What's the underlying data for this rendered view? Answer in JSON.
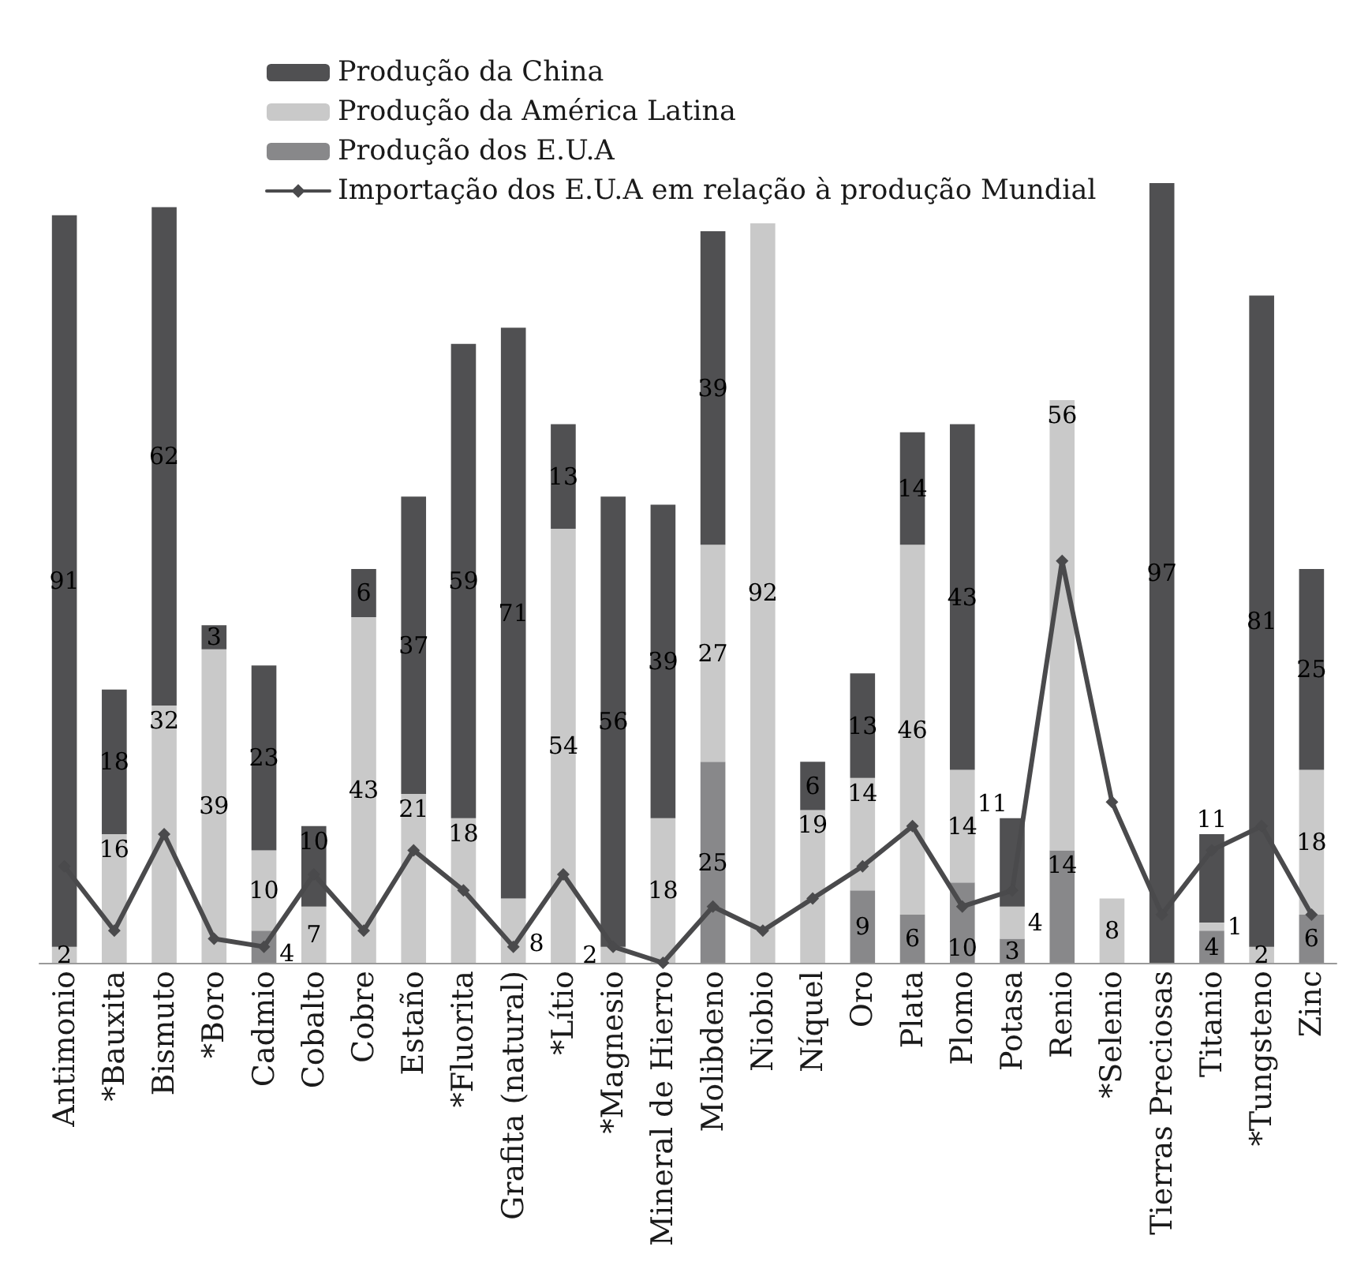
{
  "chart_data": {
    "type": "bar",
    "stacked": true,
    "categories": [
      "Antimonio",
      "*Bauxita",
      "Bismuto",
      "*Boro",
      "Cadmio",
      "Cobalto",
      "Cobre",
      "Estaño",
      "*Fluorita",
      "Grafita (natural)",
      "*Lítio",
      "*Magnesio",
      "Mineral de Hierro",
      "Molibdeno",
      "Niobio",
      "Níquel",
      "Oro",
      "Plata",
      "Plomo",
      "Potasa",
      "Renio",
      "*Selenio",
      "Tierras Preciosas",
      "Titanio",
      "*Tungsteno",
      "Zinc"
    ],
    "series": [
      {
        "name": "Produção dos E.U.A",
        "color": "#88888a",
        "values": [
          null,
          null,
          null,
          null,
          4,
          null,
          null,
          null,
          null,
          null,
          null,
          null,
          null,
          25,
          null,
          null,
          9,
          6,
          10,
          3,
          14,
          null,
          null,
          4,
          null,
          6
        ],
        "value_labels": [
          null,
          null,
          null,
          null,
          "4",
          null,
          null,
          null,
          null,
          null,
          null,
          null,
          null,
          "25",
          null,
          null,
          "9",
          "6",
          "10",
          "3",
          "14",
          null,
          null,
          "4",
          null,
          "6"
        ]
      },
      {
        "name": "Produção da América Latina",
        "color": "#c9c9c9",
        "values": [
          2,
          16,
          32,
          39,
          10,
          7,
          43,
          21,
          18,
          8,
          54,
          2,
          18,
          27,
          92,
          19,
          14,
          46,
          14,
          4,
          56,
          8,
          null,
          1,
          2,
          18
        ],
        "value_labels": [
          "2",
          "16",
          "32",
          "39",
          "10",
          "7",
          "43",
          "21",
          "18",
          "8",
          "54",
          "2",
          "18",
          "27",
          "92",
          "19",
          "14",
          "46",
          "14",
          "4",
          "56",
          "8",
          null,
          "1",
          "2",
          "18"
        ]
      },
      {
        "name": "Produção da China",
        "color": "#505052",
        "values": [
          91,
          18,
          62,
          3,
          23,
          10,
          6,
          37,
          59,
          71,
          13,
          56,
          39,
          39,
          null,
          6,
          13,
          14,
          43,
          11,
          null,
          null,
          97,
          11,
          81,
          25
        ],
        "value_labels": [
          "91",
          "18",
          "62",
          "3",
          "23",
          "10",
          "6",
          "37",
          "59",
          "71",
          "13",
          "56",
          "39",
          "39",
          null,
          "6",
          "13",
          "14",
          "43",
          "11",
          null,
          null,
          "97",
          "11",
          "81",
          "25"
        ]
      },
      {
        "name": "Importação dos E.U.A em relação à produção Mundial",
        "type": "line",
        "color": "#4a4a4c",
        "values": [
          12,
          4,
          16,
          3,
          2,
          11,
          4,
          14,
          9,
          2,
          11,
          2,
          0,
          7,
          4,
          8,
          12,
          17,
          7,
          9,
          50,
          20,
          6,
          14,
          17,
          6
        ]
      }
    ],
    "tick_labels": "x",
    "legend": "top",
    "marker": "diamond"
  }
}
